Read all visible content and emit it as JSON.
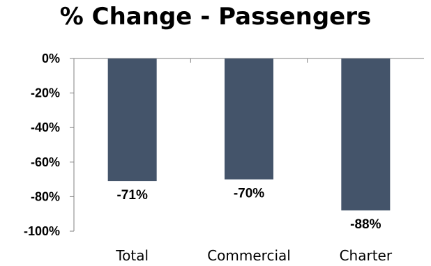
{
  "chart_data": {
    "type": "bar",
    "title": "% Change - Passengers",
    "categories": [
      "Total",
      "Commercial",
      "Charter"
    ],
    "values": [
      -71,
      -70,
      -88
    ],
    "data_labels": [
      "-71%",
      "-70%",
      "-88%"
    ],
    "ylim": [
      -100,
      0
    ],
    "yticks": [
      0,
      -20,
      -40,
      -60,
      -80,
      -100
    ],
    "ytick_labels": [
      "0%",
      "-20%",
      "-40%",
      "-60%",
      "-80%",
      "-100%"
    ],
    "xlabel": "",
    "ylabel": "",
    "bar_color": "#44546a",
    "grid": false,
    "legend": "none"
  }
}
